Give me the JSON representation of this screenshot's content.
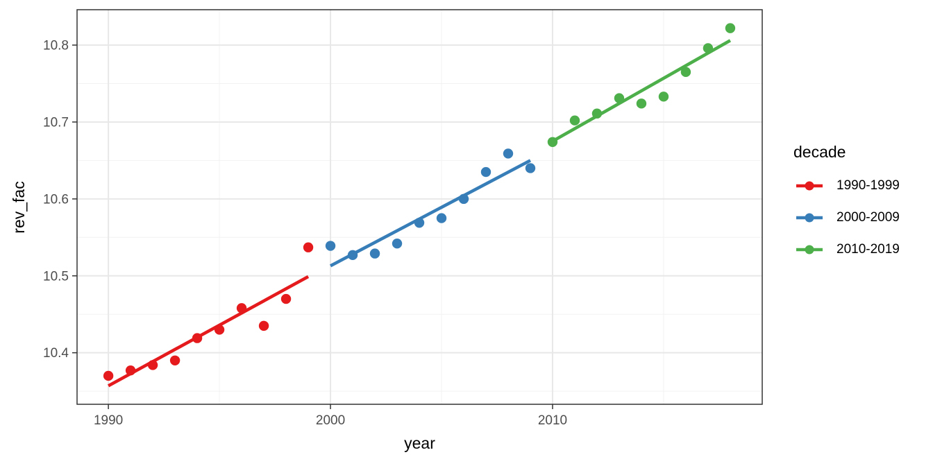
{
  "chart_data": {
    "type": "scatter",
    "title": "",
    "xlabel": "year",
    "ylabel": "rev_fac",
    "grid": true,
    "x_domain": [
      1988.59,
      2019.44
    ],
    "y_domain": [
      10.333,
      10.846
    ],
    "x_ticks": [
      {
        "value": 1990,
        "label": "1990"
      },
      {
        "value": 2000,
        "label": "2000"
      },
      {
        "value": 2010,
        "label": "2010"
      }
    ],
    "x_minor": [
      1995,
      2005,
      2015
    ],
    "y_ticks": [
      {
        "value": 10.4,
        "label": "10.4"
      },
      {
        "value": 10.5,
        "label": "10.5"
      },
      {
        "value": 10.6,
        "label": "10.6"
      },
      {
        "value": 10.7,
        "label": "10.7"
      },
      {
        "value": 10.8,
        "label": "10.8"
      }
    ],
    "y_minor": [
      10.35,
      10.45,
      10.55,
      10.65,
      10.75
    ],
    "legend": {
      "title": "decade",
      "position": "right"
    },
    "series": [
      {
        "name": "1990-1999",
        "color": "#E41A1C",
        "x": [
          1990,
          1991,
          1992,
          1993,
          1994,
          1995,
          1996,
          1997,
          1998,
          1999
        ],
        "y": [
          10.37,
          10.377,
          10.384,
          10.39,
          10.419,
          10.43,
          10.458,
          10.435,
          10.47,
          10.537
        ],
        "trend": {
          "x": [
            1990,
            1999
          ],
          "y": [
            10.357,
            10.499
          ]
        }
      },
      {
        "name": "2000-2009",
        "color": "#377EB8",
        "x": [
          2000,
          2001,
          2002,
          2003,
          2004,
          2005,
          2006,
          2007,
          2008,
          2009
        ],
        "y": [
          10.539,
          10.527,
          10.529,
          10.542,
          10.569,
          10.575,
          10.6,
          10.635,
          10.659,
          10.64
        ],
        "trend": {
          "x": [
            2000,
            2009
          ],
          "y": [
            10.513,
            10.65
          ]
        }
      },
      {
        "name": "2010-2019",
        "color": "#4DAF4A",
        "x": [
          2010,
          2011,
          2012,
          2013,
          2014,
          2015,
          2016,
          2017,
          2018
        ],
        "y": [
          10.674,
          10.702,
          10.711,
          10.731,
          10.724,
          10.733,
          10.765,
          10.796,
          10.822
        ],
        "trend": {
          "x": [
            2010,
            2018
          ],
          "y": [
            10.675,
            10.806
          ]
        }
      }
    ],
    "colors": {
      "background": "#FFFFFF",
      "panel_background": "#FFFFFF",
      "grid_major": "#E8E8E8",
      "grid_minor": "#F2F2F2",
      "panel_border": "#333333",
      "tick_mark": "#333333",
      "tick_label": "#4D4D4D",
      "axis_title": "#000000"
    }
  }
}
